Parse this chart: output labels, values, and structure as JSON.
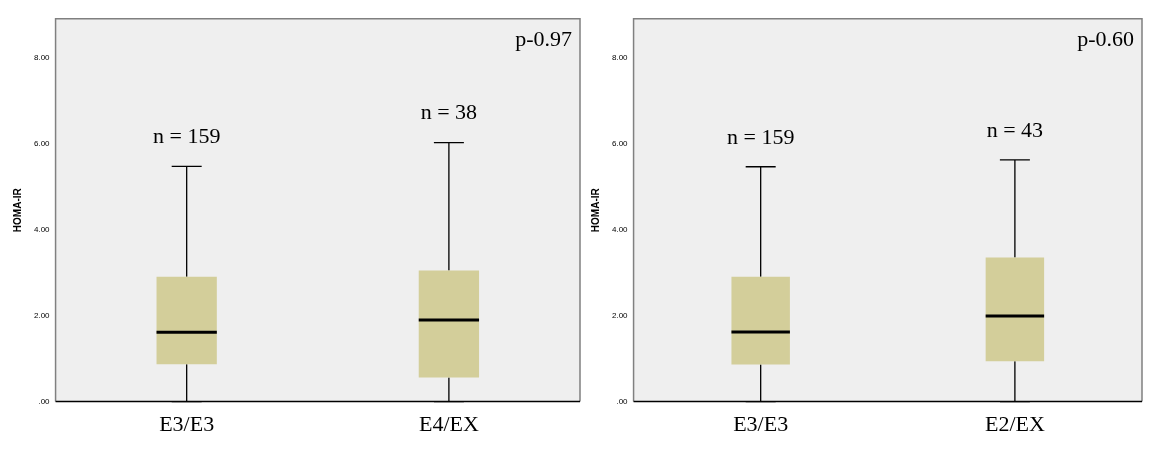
{
  "chart_data": [
    {
      "type": "box",
      "ylabel": "HOMA-IR",
      "categories": [
        "E3/E3",
        "E4/EX"
      ],
      "color": "#d3ce9a",
      "boxes": [
        {
          "low": 0,
          "q1": 0.87,
          "median": 1.61,
          "q3": 2.9,
          "high": 5.47
        },
        {
          "low": 0,
          "q1": 0.56,
          "median": 1.9,
          "q3": 3.05,
          "high": 6.02
        }
      ],
      "ylim": [
        0,
        8.9
      ],
      "yticks": [
        {
          "value": 0,
          "label": ".00"
        },
        {
          "value": 2,
          "label": "2.00"
        },
        {
          "value": 4,
          "label": "4.00"
        },
        {
          "value": 6,
          "label": "6.00"
        },
        {
          "value": 8,
          "label": "8.00"
        }
      ],
      "grid": false,
      "legend": false,
      "annotations": [
        "n = 159",
        "n = 38",
        "p-0.97"
      ]
    },
    {
      "type": "box",
      "ylabel": "HOMA-IR",
      "categories": [
        "E3/E3",
        "E2/EX"
      ],
      "color": "#d3ce9a",
      "boxes": [
        {
          "low": 0,
          "q1": 0.86,
          "median": 1.62,
          "q3": 2.9,
          "high": 5.46
        },
        {
          "low": 0,
          "q1": 0.94,
          "median": 1.99,
          "q3": 3.35,
          "high": 5.62
        }
      ],
      "ylim": [
        0,
        8.9
      ],
      "yticks": [
        {
          "value": 0,
          "label": ".00"
        },
        {
          "value": 2,
          "label": "2.00"
        },
        {
          "value": 4,
          "label": "4.00"
        },
        {
          "value": 6,
          "label": "6.00"
        },
        {
          "value": 8,
          "label": "8.00"
        }
      ],
      "grid": false,
      "legend": false,
      "annotations": [
        "n = 159",
        "n = 43",
        "p-0.60"
      ]
    }
  ]
}
